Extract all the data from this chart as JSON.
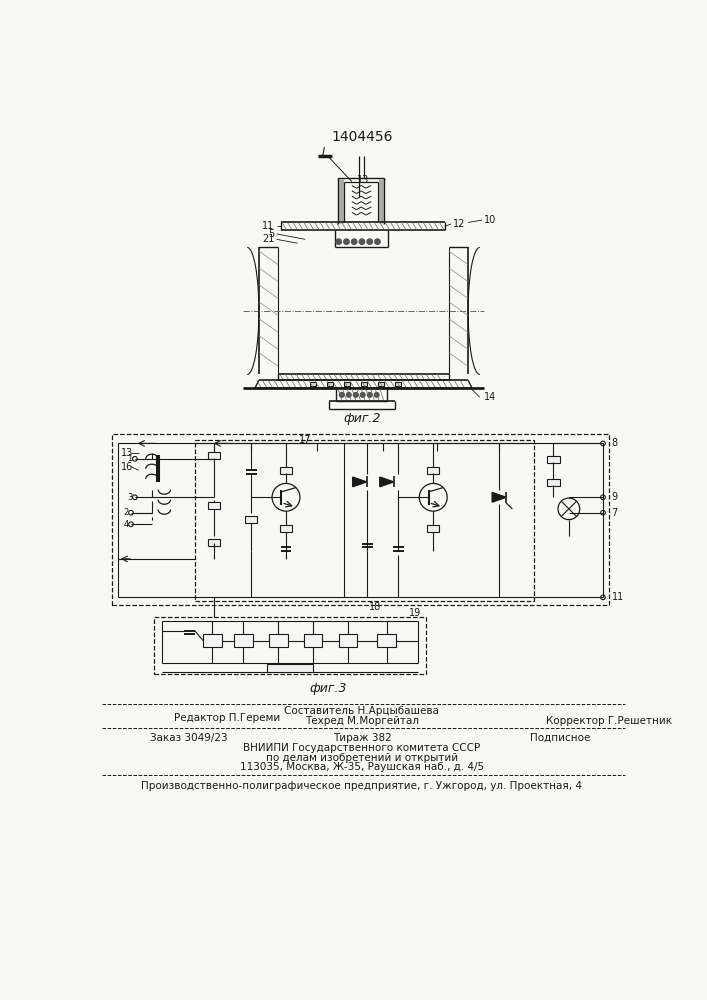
{
  "patent_number": "1404456",
  "bg_color": "#f8f8f5",
  "fig2_label": "фиг.2",
  "fig3_label": "фиг.3",
  "footer_line1": "Составитель Н.Арцыбашева",
  "footer_editor": "Редактор П.Гереми",
  "footer_techred": "Техред М.Моргейтал",
  "footer_corrector": "Корректор Г.Решетник",
  "footer_order": "Заказ 3049/23",
  "footer_tirage": "Тираж 382",
  "footer_podpisnoe": "Подписное",
  "footer_org": "ВНИИПИ Государственного комитета СССР",
  "footer_org2": "по делам изобретений и открытий",
  "footer_address": "113035, Москва, Ж-35, Раушская наб., д. 4/5",
  "footer_factory": "Производственно-полиграфическое предприятие, г. Ужгород, ул. Проектная, 4"
}
